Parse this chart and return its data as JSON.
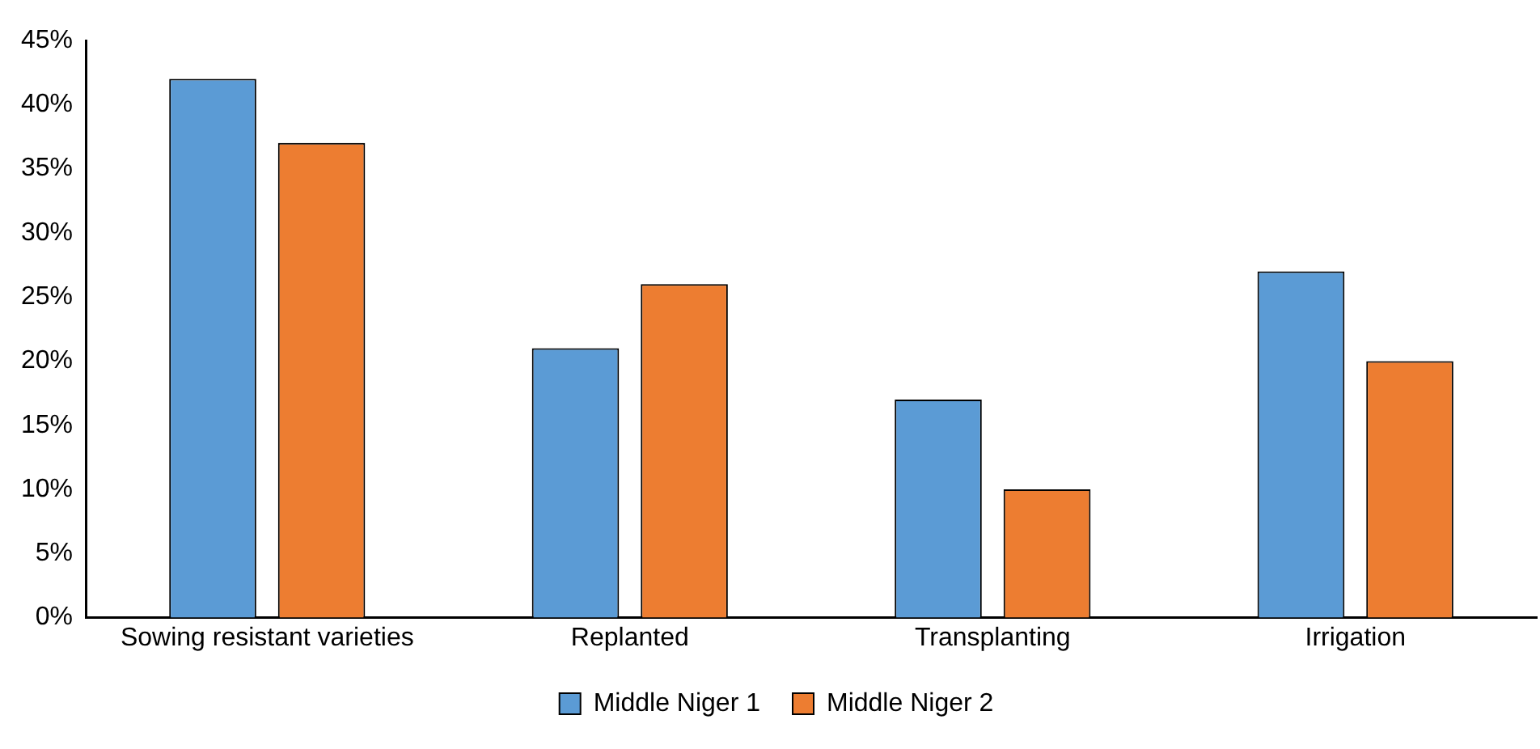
{
  "chart_data": {
    "type": "bar",
    "categories": [
      "Sowing resistant varieties",
      "Replanted",
      "Transplanting",
      "Irrigation"
    ],
    "series": [
      {
        "name": "Middle Niger 1",
        "color": "#5b9bd5",
        "values": [
          42,
          21,
          17,
          27
        ]
      },
      {
        "name": "Middle Niger 2",
        "color": "#ed7d31",
        "values": [
          37,
          26,
          10,
          20
        ]
      }
    ],
    "ylim": [
      0,
      45
    ],
    "yticks": [
      {
        "value": 0,
        "label": "0%"
      },
      {
        "value": 5,
        "label": "5%"
      },
      {
        "value": 10,
        "label": "10%"
      },
      {
        "value": 15,
        "label": "15%"
      },
      {
        "value": 20,
        "label": "20%"
      },
      {
        "value": 25,
        "label": "25%"
      },
      {
        "value": 30,
        "label": "30%"
      },
      {
        "value": 35,
        "label": "35%"
      },
      {
        "value": 40,
        "label": "40%"
      },
      {
        "value": 45,
        "label": "45%"
      }
    ],
    "grid": false,
    "legend": "bottom"
  }
}
